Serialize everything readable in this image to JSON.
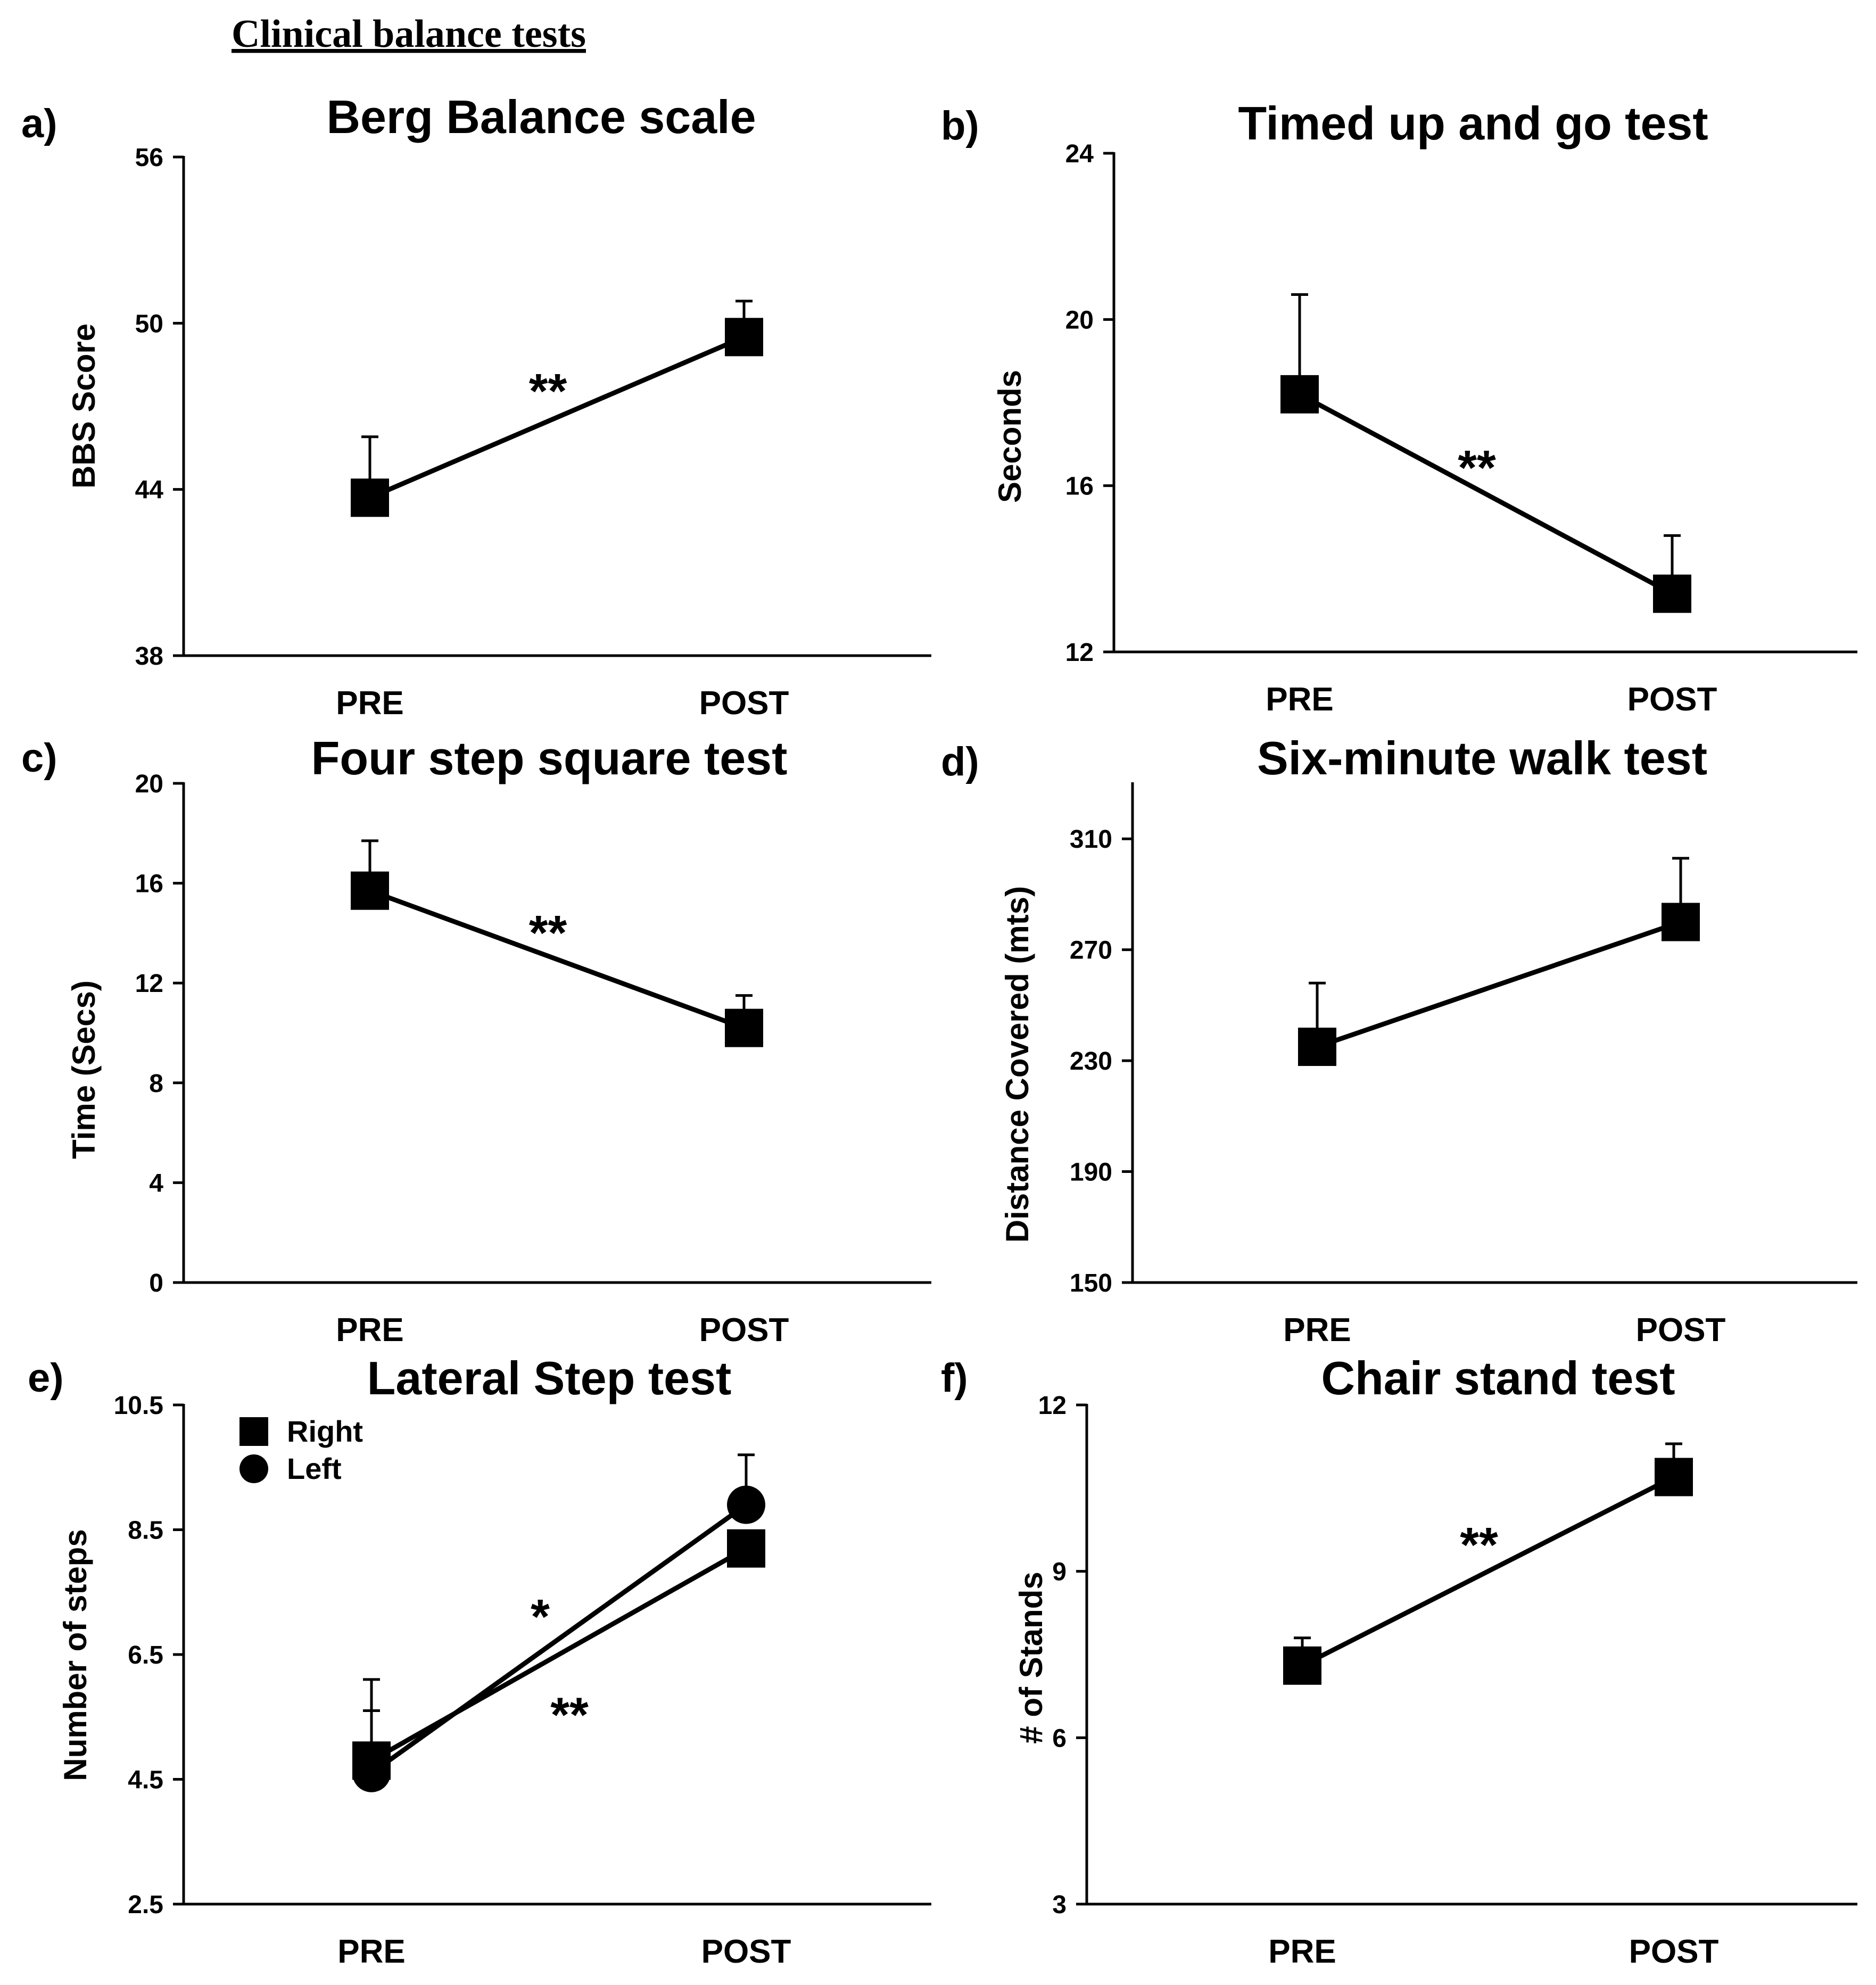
{
  "figure_title": "Clinical balance tests",
  "chart_data": [
    {
      "id": "a",
      "panel_label": "a)",
      "type": "line",
      "title": "Berg Balance scale",
      "xlabel": "",
      "ylabel": "BBS Score",
      "categories": [
        "PRE",
        "POST"
      ],
      "ylim": [
        38,
        56
      ],
      "yticks": [
        "38",
        "44",
        "50",
        "56"
      ],
      "series": [
        {
          "name": "",
          "marker": "square",
          "values": [
            43.7,
            49.5
          ],
          "err": [
            2.2,
            1.3
          ]
        }
      ],
      "significance": "**"
    },
    {
      "id": "b",
      "panel_label": "b)",
      "type": "line",
      "title": "Timed up and go test",
      "xlabel": "",
      "ylabel": "Seconds",
      "categories": [
        "PRE",
        "POST"
      ],
      "ylim": [
        12,
        24
      ],
      "yticks": [
        "12",
        "16",
        "20",
        "24"
      ],
      "series": [
        {
          "name": "",
          "marker": "square",
          "values": [
            18.2,
            13.4
          ],
          "err": [
            2.4,
            1.4
          ]
        }
      ],
      "significance": "**"
    },
    {
      "id": "c",
      "panel_label": "c)",
      "type": "line",
      "title": "Four step square test",
      "xlabel": "",
      "ylabel": "Time (Secs)",
      "categories": [
        "PRE",
        "POST"
      ],
      "ylim": [
        0,
        20
      ],
      "yticks": [
        "0",
        "4",
        "8",
        "12",
        "16",
        "20"
      ],
      "series": [
        {
          "name": "",
          "marker": "square",
          "values": [
            15.7,
            10.2
          ],
          "err": [
            2.0,
            1.3
          ]
        }
      ],
      "significance": "**"
    },
    {
      "id": "d",
      "panel_label": "d)",
      "type": "line",
      "title": "Six-minute walk test",
      "xlabel": "",
      "ylabel": "Distance Covered (mts)",
      "categories": [
        "PRE",
        "POST"
      ],
      "ylim": [
        150,
        330
      ],
      "yticks": [
        "150",
        "190",
        "230",
        "270",
        "310"
      ],
      "series": [
        {
          "name": "",
          "marker": "square",
          "values": [
            235,
            280
          ],
          "err": [
            23,
            23
          ]
        }
      ],
      "significance": ""
    },
    {
      "id": "e",
      "panel_label": "e)",
      "type": "line",
      "title": "Lateral Step test",
      "xlabel": "",
      "ylabel": "Number of steps",
      "categories": [
        "PRE",
        "POST"
      ],
      "ylim": [
        2.5,
        10.5
      ],
      "yticks": [
        "2.5",
        "4.5",
        "6.5",
        "8.5",
        "10.5"
      ],
      "series": [
        {
          "name": "Right",
          "marker": "square",
          "values": [
            4.8,
            8.2
          ],
          "err": [
            0.8,
            0.0
          ]
        },
        {
          "name": "Left",
          "marker": "circle",
          "values": [
            4.6,
            8.9
          ],
          "err": [
            1.5,
            0.8
          ]
        }
      ],
      "significance_labels": [
        "*",
        "**"
      ],
      "legend": "top-left"
    },
    {
      "id": "f",
      "panel_label": "f)",
      "type": "line",
      "title": "Chair stand test",
      "xlabel": "",
      "ylabel": "# of Stands",
      "categories": [
        "PRE",
        "POST"
      ],
      "ylim": [
        3,
        12
      ],
      "yticks": [
        "3",
        "6",
        "9",
        "12"
      ],
      "series": [
        {
          "name": "",
          "marker": "square",
          "values": [
            7.3,
            10.7
          ],
          "err": [
            0.5,
            0.6
          ]
        }
      ],
      "significance": "**"
    }
  ]
}
